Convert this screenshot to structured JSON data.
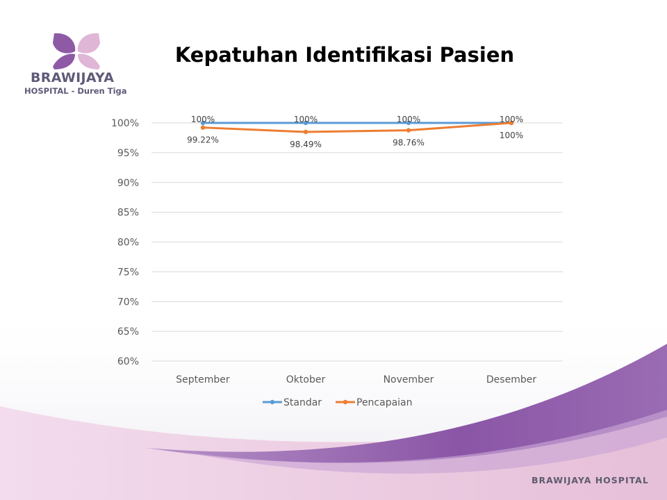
{
  "slide": {
    "title": "Kepatuhan Identifikasi Pasien",
    "logo": {
      "name": "BRAWIJAYA",
      "subtitle": "HOSPITAL - Duren Tiga"
    },
    "footer": "BRAWIJAYA HOSPITAL",
    "colors": {
      "purple": "#8e5aa6",
      "pink": "#e0b6d7",
      "standar": "#5b9bd5",
      "pencapaian": "#ed7d31"
    }
  },
  "chart_data": {
    "type": "line",
    "title": "",
    "xlabel": "",
    "ylabel": "",
    "categories": [
      "September",
      "Oktober",
      "November",
      "Desember"
    ],
    "ylim": [
      60,
      100
    ],
    "yticks": [
      60,
      65,
      70,
      75,
      80,
      85,
      90,
      95,
      100
    ],
    "ytick_labels": [
      "60%",
      "65%",
      "70%",
      "75%",
      "80%",
      "85%",
      "90%",
      "95%",
      "100%"
    ],
    "grid": true,
    "legend_position": "bottom",
    "series": [
      {
        "name": "Standar",
        "color": "#5b9bd5",
        "values": [
          100,
          100,
          100,
          100
        ],
        "labels": [
          "100%",
          "100%",
          "100%",
          "100%"
        ]
      },
      {
        "name": "Pencapaian",
        "color": "#ed7d31",
        "values": [
          99.22,
          98.49,
          98.76,
          100
        ],
        "labels": [
          "99.22%",
          "98.49%",
          "98.76%",
          "100%"
        ]
      }
    ]
  }
}
